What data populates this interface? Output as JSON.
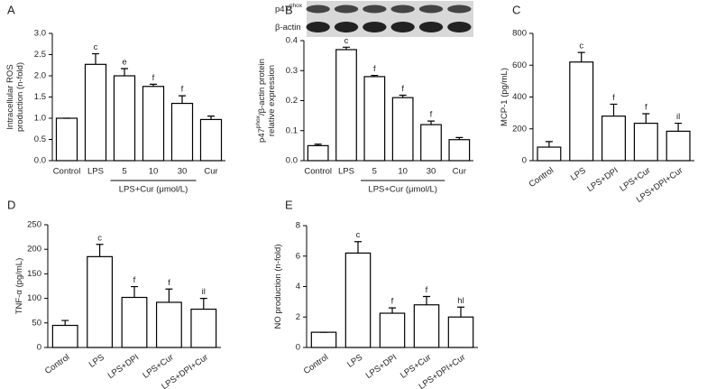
{
  "chart_data": [
    {
      "type": "bar",
      "panel": "A",
      "ylabel": [
        [
          {
            "text": "Intracellular ROS"
          }
        ],
        [
          {
            "text": "production (n-fold)"
          }
        ]
      ],
      "categories": [
        "Control",
        "LPS",
        "5",
        "10",
        "30",
        "Cur"
      ],
      "values": [
        1.0,
        2.27,
        2.0,
        1.75,
        1.35,
        0.97
      ],
      "errors": [
        0,
        0.25,
        0.17,
        0.05,
        0.18,
        0.08
      ],
      "annotations": [
        null,
        "c",
        "e",
        "f",
        "f",
        null
      ],
      "group_label": "LPS+Cur (μmol/L)",
      "ylim": [
        0,
        3.0
      ],
      "yticks": [
        {
          "value": 0,
          "label": "0.0"
        },
        {
          "value": 0.5,
          "label": "0.5"
        },
        {
          "value": 1,
          "label": "1.0"
        },
        {
          "value": 1.5,
          "label": "1.5"
        },
        {
          "value": 2,
          "label": "2.0"
        },
        {
          "value": 2.5,
          "label": "2.5"
        },
        {
          "value": 3,
          "label": "3.0"
        }
      ]
    },
    {
      "type": "bar",
      "panel": "B",
      "ylabel": [
        [
          {
            "text": "p47"
          },
          {
            "text": "phox",
            "sup": true
          },
          {
            "text": "/β-actin protein"
          }
        ],
        [
          {
            "text": "relative expression"
          }
        ]
      ],
      "blot_labels": [
        [
          {
            "text": "p47"
          },
          {
            "text": "phox",
            "sup": true
          }
        ],
        [
          {
            "text": "β-actin"
          }
        ]
      ],
      "categories": [
        "Control",
        "LPS",
        "5",
        "10",
        "30",
        "Cur"
      ],
      "values": [
        0.05,
        0.37,
        0.28,
        0.21,
        0.12,
        0.07
      ],
      "errors": [
        0.005,
        0.008,
        0.004,
        0.008,
        0.012,
        0.007
      ],
      "annotations": [
        null,
        "c",
        "f",
        "f",
        "f",
        null
      ],
      "group_label": "LPS+Cur (μmol/L)",
      "ylim": [
        0,
        0.4
      ],
      "yticks": [
        {
          "value": 0,
          "label": "0.0"
        },
        {
          "value": 0.1,
          "label": "0.1"
        },
        {
          "value": 0.2,
          "label": "0.2"
        },
        {
          "value": 0.3,
          "label": "0.3"
        },
        {
          "value": 0.4,
          "label": "0.4"
        }
      ]
    },
    {
      "type": "bar",
      "panel": "C",
      "ylabel": [
        [
          {
            "text": "MCP-1 (pg/mL)"
          }
        ]
      ],
      "categories": [
        "Control",
        "LPS",
        "LPS+DPI",
        "LPS+Cur",
        "LPS+DPI+Cur"
      ],
      "values": [
        85,
        620,
        280,
        235,
        185
      ],
      "errors": [
        35,
        60,
        75,
        60,
        50
      ],
      "annotations": [
        null,
        "c",
        "f",
        "f",
        "il"
      ],
      "ylim": [
        0,
        800
      ],
      "yticks": [
        0,
        200,
        400,
        600,
        800
      ]
    },
    {
      "type": "bar",
      "panel": "D",
      "ylabel": [
        [
          {
            "text": "TNF-α (pg/mL)"
          }
        ]
      ],
      "categories": [
        "Control",
        "LPS",
        "LPS+DPI",
        "LPS+Cur",
        "LPS+DPI+Cur"
      ],
      "values": [
        45,
        185,
        102,
        92,
        78
      ],
      "errors": [
        10,
        25,
        22,
        27,
        22
      ],
      "annotations": [
        null,
        "c",
        "f",
        "f",
        "il"
      ],
      "ylim": [
        0,
        250
      ],
      "yticks": [
        0,
        50,
        100,
        150,
        200,
        250
      ]
    },
    {
      "type": "bar",
      "panel": "E",
      "ylabel": [
        [
          {
            "text": "NO production (n-fold)"
          }
        ]
      ],
      "categories": [
        "Control",
        "LPS",
        "LPS+DPI",
        "LPS+Cur",
        "LPS+DPI+Cur"
      ],
      "values": [
        1.0,
        6.2,
        2.25,
        2.8,
        2.0
      ],
      "errors": [
        0,
        0.75,
        0.35,
        0.55,
        0.65
      ],
      "annotations": [
        null,
        "c",
        "f",
        "f",
        "hl"
      ],
      "ylim": [
        0,
        8
      ],
      "yticks": [
        0,
        2,
        4,
        6,
        8
      ]
    }
  ]
}
